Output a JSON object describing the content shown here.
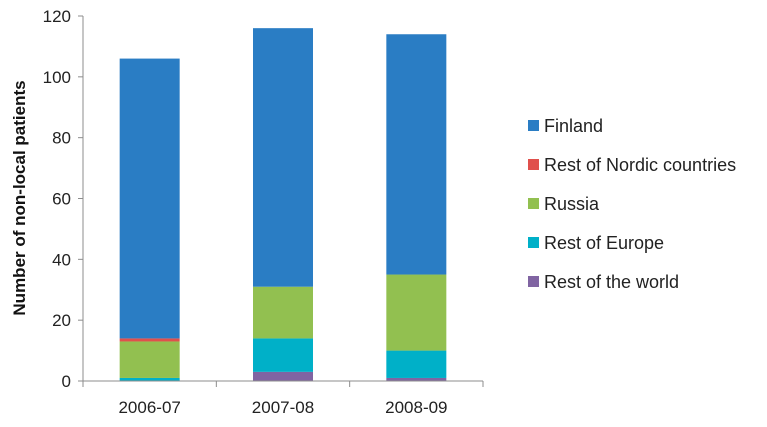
{
  "chart_data": {
    "type": "bar",
    "stacked": true,
    "categories": [
      "2006-07",
      "2007-08",
      "2008-09"
    ],
    "series": [
      {
        "name": "Rest of the world",
        "color": "#8064a2",
        "values": [
          0,
          3,
          1
        ]
      },
      {
        "name": "Rest of Europe",
        "color": "#00b0c8",
        "values": [
          1,
          11,
          9
        ]
      },
      {
        "name": "Russia",
        "color": "#92c050",
        "values": [
          12,
          17,
          25
        ]
      },
      {
        "name": "Rest of Nordic countries",
        "color": "#e0504c",
        "values": [
          1,
          0,
          0
        ]
      },
      {
        "name": "Finland",
        "color": "#2a7dc4",
        "values": [
          92,
          85,
          79
        ]
      }
    ],
    "legend_order": [
      "Finland",
      "Rest of Nordic countries",
      "Russia",
      "Rest of Europe",
      "Rest of the world"
    ],
    "legend_position": "right",
    "ylabel": "Number of non-local patients",
    "xlabel": "",
    "title": "",
    "ylim": [
      0,
      120
    ],
    "yticks": [
      0,
      20,
      40,
      60,
      80,
      100,
      120
    ],
    "grid": false
  }
}
